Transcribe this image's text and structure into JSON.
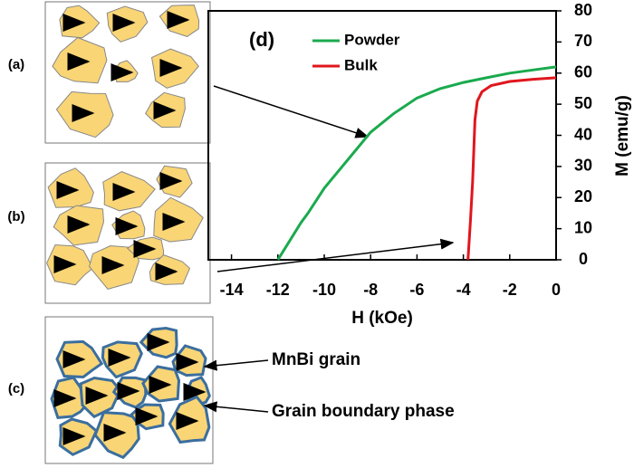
{
  "chart_data": {
    "type": "line",
    "annotations": [
      "(d)"
    ],
    "xlabel": "H (kOe)",
    "ylabel": "M (emu/g)",
    "xlim": [
      -15,
      0
    ],
    "xticks": [
      -14,
      -12,
      -10,
      -8,
      -6,
      -4,
      -2,
      0
    ],
    "ylim": [
      0,
      80
    ],
    "yticks": [
      0,
      10,
      20,
      30,
      40,
      50,
      60,
      70,
      80
    ],
    "grid": false,
    "legend": "upper left",
    "series": [
      {
        "name": "Powder",
        "color": "#1aaa4e",
        "x": [
          -12,
          -11.5,
          -11,
          -10.7,
          -10,
          -9,
          -8,
          -7,
          -6,
          -5,
          -4,
          -3,
          -2,
          -1,
          0
        ],
        "values": [
          0,
          6,
          12,
          15,
          23,
          32,
          41,
          47,
          52,
          55,
          57,
          58.5,
          60,
          61,
          62
        ]
      },
      {
        "name": "Bulk",
        "color": "#e0161d",
        "x": [
          -3.8,
          -3.7,
          -3.6,
          -3.5,
          -3.4,
          -3.2,
          -2.8,
          -2,
          -1,
          0
        ],
        "values": [
          0,
          12,
          25,
          45,
          51,
          54,
          56,
          57.3,
          58,
          58.5
        ]
      }
    ]
  },
  "panels": [
    "(a)",
    "(b)",
    "(c)"
  ],
  "labels": [
    "MnBi grain",
    "Grain boundary phase"
  ]
}
